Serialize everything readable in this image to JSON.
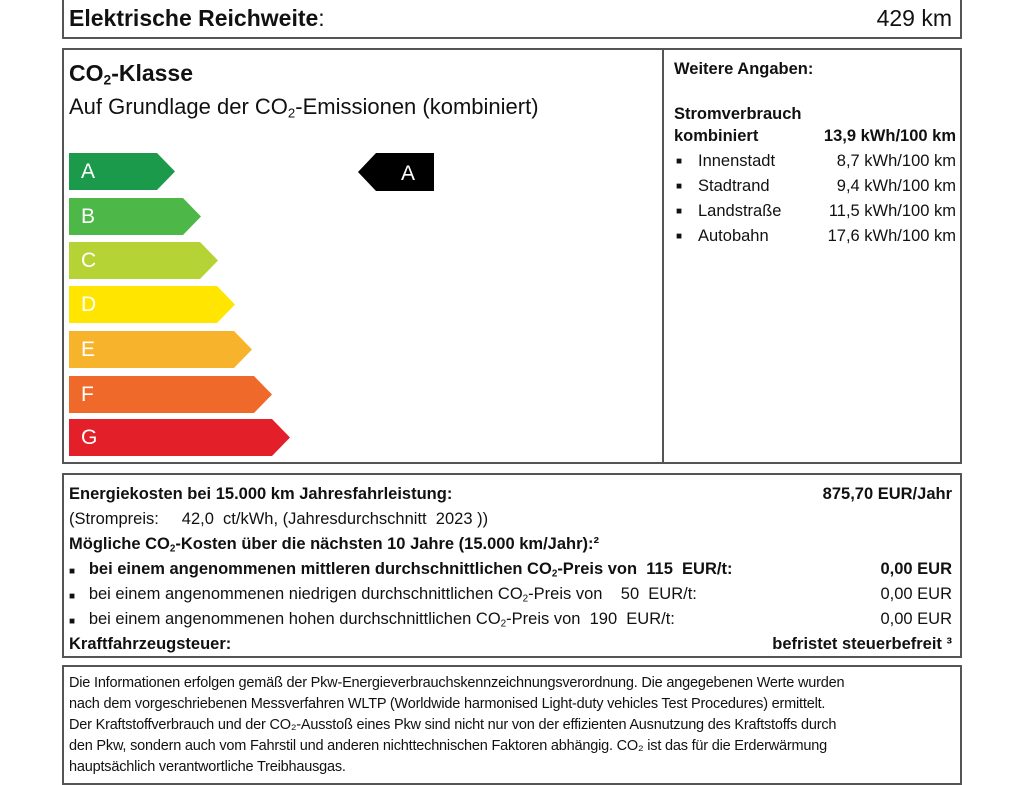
{
  "range": {
    "label": "Elektrische Reichweite",
    "value": "429 km"
  },
  "co2": {
    "title": "CO",
    "title_sub": "2",
    "title_rest": "-Klasse",
    "subtitle_a": "Auf Grundlage der CO",
    "subtitle_sub": "2",
    "subtitle_b": "-Emissionen (kombiniert)",
    "classes": [
      {
        "label": "A",
        "color": "#1a9a4a"
      },
      {
        "label": "B",
        "color": "#4db848"
      },
      {
        "label": "C",
        "color": "#b5d334"
      },
      {
        "label": "D",
        "color": "#ffe500"
      },
      {
        "label": "E",
        "color": "#f7b32b"
      },
      {
        "label": "F",
        "color": "#ef6a2a"
      },
      {
        "label": "G",
        "color": "#e3202a"
      }
    ],
    "current_class": "A"
  },
  "more": {
    "title": "Weitere Angaben:",
    "consumption_title": "Stromverbrauch",
    "combined_label": "kombiniert",
    "combined_value": "13,9 kWh/100 km",
    "items": [
      {
        "label": "Innenstadt",
        "value": "8,7 kWh/100 km"
      },
      {
        "label": "Stadtrand",
        "value": "9,4 kWh/100 km"
      },
      {
        "label": "Landstraße",
        "value": "11,5 kWh/100 km"
      },
      {
        "label": "Autobahn",
        "value": "17,6 kWh/100 km"
      }
    ]
  },
  "costs": {
    "energy_label": "Energiekosten bei 15.000 km Jahresfahrleistung:",
    "energy_value": "875,70 EUR/Jahr",
    "price_line": "(Strompreis:     42,0  ct/kWh, (Jahresdurchschnitt  2023 ))",
    "co2_title_a": "Mögliche CO",
    "co2_title_b": "-Kosten über die nächsten 10 Jahre (15.000 km/Jahr):²",
    "rows": [
      {
        "a": "bei einem angenommenen mittleren durchschnittlichen CO",
        "b": "-Preis von  115  EUR/t:",
        "value": "0,00 EUR",
        "bold": true
      },
      {
        "a": "bei einem angenommenen niedrigen durchschnittlichen CO",
        "b": "-Preis von    50  EUR/t:",
        "value": "0,00 EUR",
        "bold": false
      },
      {
        "a": "bei einem angenommenen hohen durchschnittlichen CO",
        "b": "-Preis von  190  EUR/t:",
        "value": "0,00 EUR",
        "bold": false
      }
    ],
    "tax_label": "Kraftfahrzeugsteuer:",
    "tax_value": "befristet steuerbefreit ³"
  },
  "footer": {
    "lines": [
      "Die Informationen erfolgen gemäß der Pkw-Energieverbrauchskennzeichnungsverordnung. Die angegebenen Werte wurden",
      "nach dem vorgeschriebenen Messverfahren WLTP (Worldwide harmonised Light-duty vehicles Test Procedures) ermittelt.",
      "Der Kraftstoffverbrauch und der CO₂-Ausstoß eines Pkw sind nicht nur von der effizienten Ausnutzung des Kraftstoffs durch",
      "den Pkw, sondern auch vom Fahrstil und anderen nichttechnischen Faktoren abhängig. CO₂ ist das für die Erderwärmung",
      "hauptsächlich verantwortliche Treibhausgas."
    ]
  }
}
